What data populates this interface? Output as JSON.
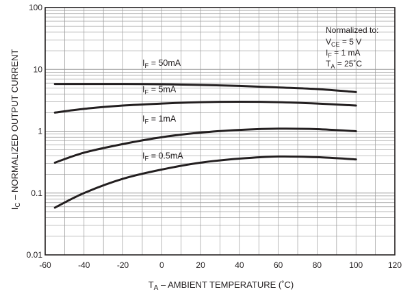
{
  "chart_data": {
    "type": "line",
    "x_scale": "linear",
    "y_scale": "log",
    "xlim": [
      -60,
      120
    ],
    "ylim": [
      0.01,
      100
    ],
    "x_ticks": [
      "-60",
      "-40",
      "-20",
      "0",
      "20",
      "40",
      "60",
      "80",
      "100",
      "120"
    ],
    "y_ticks": [
      "0.01",
      "0.1",
      "1",
      "10",
      "100"
    ],
    "grid": true,
    "xlabel": {
      "main": "T",
      "sub": "A",
      "rest": " – AMBIENT TEMPERATURE (˚C)"
    },
    "ylabel": {
      "main": "I",
      "sub": "C",
      "rest": " – NORMALIZED OUTPUT CURRENT"
    },
    "annotation": {
      "title": "Normalized to:",
      "lines": [
        {
          "main": "V",
          "sub": "CE",
          "rest": " = 5 V"
        },
        {
          "main": "I",
          "sub": "F",
          "rest": " = 1 mA"
        },
        {
          "main": "T",
          "sub": "A",
          "rest": " = 25˚C"
        }
      ]
    },
    "series": [
      {
        "label": {
          "main": "I",
          "sub": "F",
          "rest": " = 50mA"
        },
        "points": [
          [
            -55,
            5.8
          ],
          [
            -40,
            5.8
          ],
          [
            -20,
            5.8
          ],
          [
            0,
            5.75
          ],
          [
            20,
            5.6
          ],
          [
            40,
            5.4
          ],
          [
            60,
            5.1
          ],
          [
            80,
            4.8
          ],
          [
            100,
            4.3
          ]
        ]
      },
      {
        "label": {
          "main": "I",
          "sub": "F",
          "rest": " = 5mA"
        },
        "points": [
          [
            -55,
            2.0
          ],
          [
            -40,
            2.3
          ],
          [
            -20,
            2.6
          ],
          [
            0,
            2.8
          ],
          [
            20,
            2.95
          ],
          [
            40,
            3.0
          ],
          [
            60,
            2.95
          ],
          [
            80,
            2.8
          ],
          [
            100,
            2.6
          ]
        ]
      },
      {
        "label": {
          "main": "I",
          "sub": "F",
          "rest": " = 1mA"
        },
        "points": [
          [
            -55,
            0.31
          ],
          [
            -40,
            0.45
          ],
          [
            -20,
            0.62
          ],
          [
            0,
            0.8
          ],
          [
            20,
            0.95
          ],
          [
            40,
            1.05
          ],
          [
            60,
            1.1
          ],
          [
            80,
            1.08
          ],
          [
            100,
            1.0
          ]
        ]
      },
      {
        "label": {
          "main": "I",
          "sub": "F",
          "rest": " = 0.5mA"
        },
        "points": [
          [
            -55,
            0.058
          ],
          [
            -40,
            0.1
          ],
          [
            -20,
            0.17
          ],
          [
            0,
            0.24
          ],
          [
            20,
            0.31
          ],
          [
            40,
            0.36
          ],
          [
            60,
            0.39
          ],
          [
            80,
            0.38
          ],
          [
            100,
            0.35
          ]
        ]
      }
    ]
  },
  "colors": {
    "background": "#ffffff",
    "grid": "#9a9a9a",
    "axis": "#231f20",
    "curve": "#231f20"
  }
}
